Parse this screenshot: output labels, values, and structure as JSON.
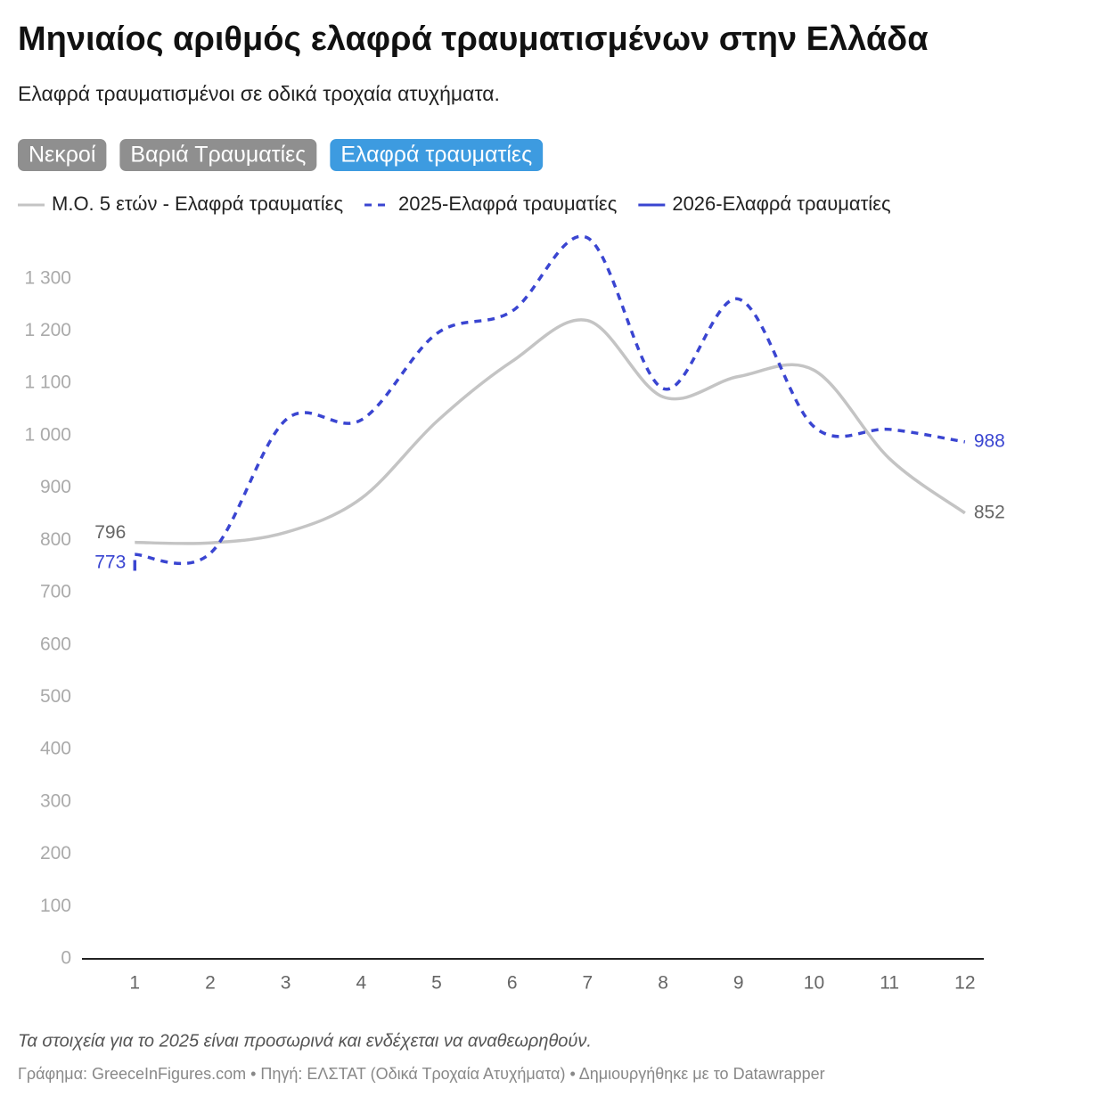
{
  "chart_data": {
    "type": "line",
    "title": "Μηνιαίος αριθμός ελαφρά τραυματισμένων στην Ελλάδα",
    "subtitle": "Ελαφρά τραυματισμένοι σε οδικά τροχαία ατυχήματα.",
    "buttons": [
      {
        "label": "Νεκροί",
        "active": false
      },
      {
        "label": "Βαριά Τραυματίες",
        "active": false
      },
      {
        "label": "Ελαφρά τραυματίες",
        "active": true
      }
    ],
    "x": [
      1,
      2,
      3,
      4,
      5,
      6,
      7,
      8,
      9,
      10,
      11,
      12
    ],
    "xlim": [
      0.3,
      12.25
    ],
    "xticks": [
      1,
      2,
      3,
      4,
      5,
      6,
      7,
      8,
      9,
      10,
      11,
      12
    ],
    "ylim": [
      0,
      1400
    ],
    "yticks": [
      0,
      100,
      200,
      300,
      400,
      500,
      600,
      700,
      800,
      900,
      {
        "value": 1000,
        "label": "1 000"
      },
      {
        "value": 1100,
        "label": "1 100"
      },
      {
        "value": 1200,
        "label": "1 200"
      },
      {
        "value": 1300,
        "label": "1 300"
      }
    ],
    "series": [
      {
        "name": "Μ.Ο. 5 ετών - Ελαφρά τραυματίες",
        "color": "#c4c4c4",
        "dashed": false,
        "values": [
          796,
          795,
          815,
          880,
          1027,
          1142,
          1220,
          1074,
          1113,
          1125,
          956,
          852
        ]
      },
      {
        "name": "2025-Ελαφρά τραυματίες",
        "color": "#3a45d1",
        "dashed": true,
        "values": [
          773,
          775,
          1030,
          1030,
          1195,
          1238,
          1378,
          1090,
          1261,
          1017,
          1012,
          988
        ]
      },
      {
        "name": "2026-Ελαφρά τραυματίες",
        "color": "#3a45d1",
        "dashed": false,
        "values": [
          752,
          null,
          null,
          null,
          null,
          null,
          null,
          null,
          null,
          null,
          null,
          null
        ]
      }
    ],
    "note": "Τα στοιχεία για το 2025 είναι προσωρινά και ενδέχεται να αναθεωρηθούν.",
    "footer": "Γράφημα: GreeceInFigures.com • Πηγή: ΕΛΣΤΑΤ (Οδικά Τροχαία Ατυχήματα) • Δημιουργήθηκε με το Datawrapper"
  }
}
